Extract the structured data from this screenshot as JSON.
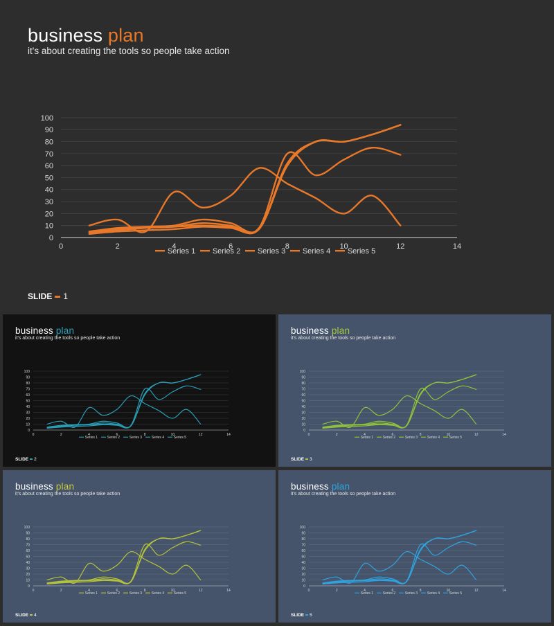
{
  "title_main": "business",
  "title_accent": "plan",
  "subtitle": "it's about creating the tools so people take action",
  "slide_label": "SLIDE",
  "slides": [
    {
      "number": "1",
      "accent": "#e8782a",
      "line_color": "#e8782a",
      "background": "#2d2d2d"
    },
    {
      "number": "2",
      "accent": "#2ea3b8",
      "line_color": "#2a9db5",
      "background": "#121212"
    },
    {
      "number": "3",
      "accent": "#a8c93e",
      "line_color": "#8fc23c",
      "background": "#45546a"
    },
    {
      "number": "4",
      "accent": "#c9c93a",
      "line_color": "#b5c43a",
      "background": "#45546a"
    },
    {
      "number": "5",
      "accent": "#2fa3e0",
      "line_color": "#2fa3e0",
      "background": "#45546a"
    }
  ],
  "chart_data": {
    "type": "scatter",
    "smooth": true,
    "xlim": [
      0,
      14
    ],
    "ylim": [
      0,
      100
    ],
    "x_ticks": [
      0,
      2,
      4,
      6,
      8,
      10,
      12,
      14
    ],
    "y_ticks": [
      0,
      10,
      20,
      30,
      40,
      50,
      60,
      70,
      80,
      90,
      100
    ],
    "grid": true,
    "legend_position": "bottom",
    "series": [
      {
        "name": "Series 1",
        "x": [
          1,
          2,
          3,
          4,
          5,
          6,
          7,
          8,
          9,
          10,
          11,
          12
        ],
        "y": [
          10,
          15,
          5,
          38,
          25,
          35,
          58,
          45,
          33,
          20,
          35,
          10
        ]
      },
      {
        "name": "Series 2",
        "x": [
          1,
          2,
          3,
          4,
          5,
          6,
          7,
          8,
          9,
          10,
          11,
          12
        ],
        "y": [
          5,
          8,
          9,
          9,
          10,
          9,
          8,
          70,
          52,
          65,
          75,
          69
        ]
      },
      {
        "name": "Series 3",
        "x": [
          1,
          2,
          3,
          4,
          5,
          6,
          7,
          8,
          9,
          10,
          11,
          12
        ],
        "y": [
          4,
          7,
          9,
          10,
          15,
          12,
          7,
          60,
          80,
          80,
          86,
          94
        ]
      },
      {
        "name": "Series 4",
        "x": [
          1,
          2,
          3,
          4,
          5,
          6,
          7,
          8,
          9,
          10,
          11,
          12
        ],
        "y": [
          3,
          5,
          6,
          7,
          9,
          8,
          7,
          60,
          80,
          80,
          86,
          94
        ]
      },
      {
        "name": "Series 5",
        "x": [
          1,
          2,
          3,
          4,
          5,
          6,
          7,
          8,
          9,
          10,
          11,
          12
        ],
        "y": [
          4,
          6,
          8,
          9,
          12,
          10,
          7,
          62,
          80,
          80,
          86,
          94
        ]
      }
    ]
  }
}
